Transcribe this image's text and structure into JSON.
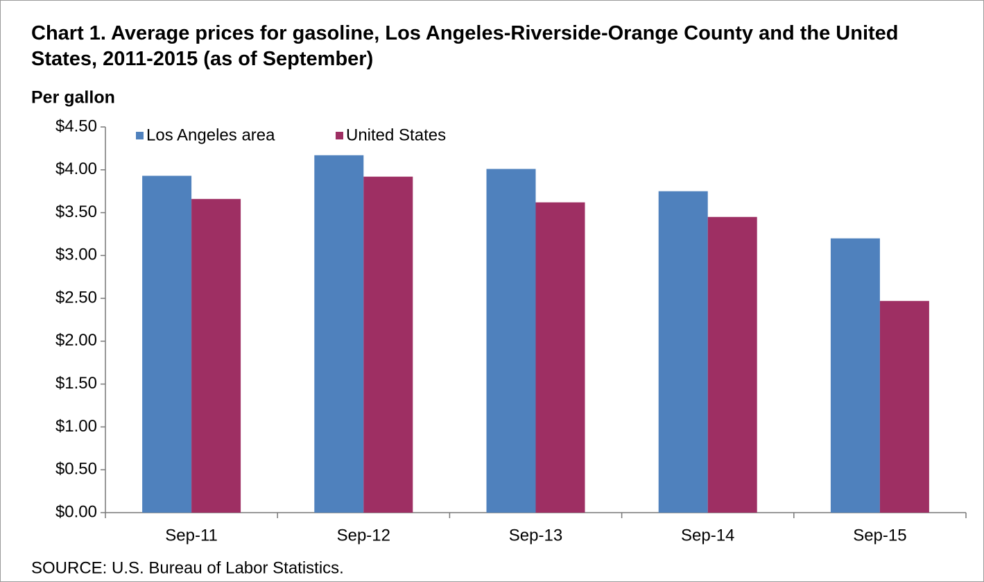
{
  "chart_data": {
    "type": "bar",
    "title": "Chart 1. Average prices for gasoline, Los Angeles-Riverside-Orange County and the United States, 2011-2015 (as of September)",
    "y_label": "Per gallon",
    "source": "SOURCE: U.S. Bureau of Labor Statistics.",
    "categories": [
      "Sep-11",
      "Sep-12",
      "Sep-13",
      "Sep-14",
      "Sep-15"
    ],
    "series": [
      {
        "name": "Los Angeles area",
        "color": "#4f81bd",
        "values": [
          3.93,
          4.17,
          4.01,
          3.75,
          3.2
        ]
      },
      {
        "name": "United States",
        "color": "#9e2f63",
        "values": [
          3.66,
          3.92,
          3.62,
          3.45,
          2.47
        ]
      }
    ],
    "ylim": [
      0,
      4.5
    ],
    "yticks": [
      {
        "value": 0,
        "label": "$0.00"
      },
      {
        "value": 0.5,
        "label": "$0.50"
      },
      {
        "value": 1,
        "label": "$1.00"
      },
      {
        "value": 1.5,
        "label": "$1.50"
      },
      {
        "value": 2,
        "label": "$2.00"
      },
      {
        "value": 2.5,
        "label": "$2.50"
      },
      {
        "value": 3,
        "label": "$3.00"
      },
      {
        "value": 3.5,
        "label": "$3.50"
      },
      {
        "value": 4,
        "label": "$4.00"
      },
      {
        "value": 4.5,
        "label": "$4.50"
      }
    ],
    "legend": "top-left",
    "grid": false
  }
}
